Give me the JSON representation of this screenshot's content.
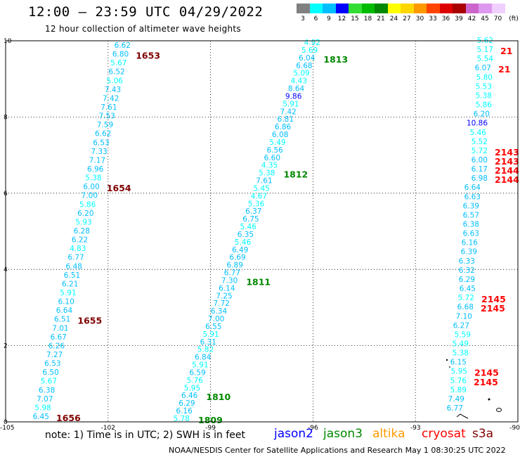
{
  "title": "12:00 — 23:59 UTC 04/29/2022",
  "subtitle": "12 hour collection of altimeter wave heights",
  "colorbar": {
    "unit": "(ft)",
    "stops": [
      {
        "label": "3",
        "color": "#808080"
      },
      {
        "label": "6",
        "color": "#00ffff"
      },
      {
        "label": "9",
        "color": "#00bfff"
      },
      {
        "label": "12",
        "color": "#0000ff"
      },
      {
        "label": "15",
        "color": "#33dd33"
      },
      {
        "label": "18",
        "color": "#00bb00"
      },
      {
        "label": "21",
        "color": "#008800"
      },
      {
        "label": "24",
        "color": "#ffff00"
      },
      {
        "label": "27",
        "color": "#ffd700"
      },
      {
        "label": "30",
        "color": "#ff9900"
      },
      {
        "label": "33",
        "color": "#ff4400"
      },
      {
        "label": "36",
        "color": "#dd0000"
      },
      {
        "label": "39",
        "color": "#aa0000"
      },
      {
        "label": "42",
        "color": "#cc66cc"
      },
      {
        "label": "45",
        "color": "#dd99ee"
      },
      {
        "label": "70",
        "color": "#f0d0ff"
      }
    ]
  },
  "map": {
    "lon_range": [
      -105,
      -90
    ],
    "lat_range": [
      0,
      10
    ],
    "lon_ticks": [
      "-105",
      "-102",
      "-99",
      "-96",
      "-93",
      "-90"
    ],
    "lat_ticks": [
      "0",
      "2",
      "4",
      "6",
      "8",
      "10"
    ],
    "grid": "dotted"
  },
  "tracks": [
    {
      "id": "t1",
      "values": [
        "6.62",
        "6.80",
        "5.67",
        "6.52",
        "5.06",
        "7.43",
        "7.42",
        "7.61",
        "7.53",
        "7.59",
        "6.62",
        "6.53",
        "7.33",
        "7.17",
        "6.96",
        "5.38",
        "6.00",
        "7.00",
        "5.86",
        "6.20",
        "5.93",
        "6.28",
        "6.22",
        "4.83",
        "6.77",
        "6.48",
        "6.51",
        "6.21",
        "5.91",
        "6.10",
        "6.64",
        "6.51",
        "7.01",
        "6.67",
        "6.26",
        "7.27",
        "6.53",
        "6.50",
        "5.67",
        "6.38",
        "7.07",
        "5.98",
        "6.45"
      ],
      "time_labels": [
        {
          "text": "1653",
          "index": 1
        },
        {
          "text": "1654",
          "index": 16
        },
        {
          "text": "1655",
          "index": 31
        },
        {
          "text": "1656",
          "index": 42
        }
      ]
    },
    {
      "id": "t2",
      "values": [
        "4.92",
        "5.69",
        "6.04",
        "6.68",
        "5.09",
        "4.43",
        "8.64",
        "9.86",
        "5.91",
        "7.42",
        "6.81",
        "6.86",
        "6.08",
        "5.49",
        "6.56",
        "6.60",
        "4.35",
        "5.38",
        "7.61",
        "5.45",
        "4.67",
        "5.36",
        "6.37",
        "6.75",
        "5.46",
        "6.35",
        "5.46",
        "6.49",
        "6.69",
        "6.89",
        "6.77",
        "7.30",
        "6.14",
        "7.25",
        "7.72",
        "6.34",
        "7.00",
        "6.55",
        "5.91",
        "6.31",
        "5.82",
        "6.84",
        "5.91",
        "6.59",
        "5.76",
        "5.95",
        "6.46",
        "6.29",
        "6.16",
        "5.78"
      ],
      "time_labels": [
        {
          "text": "1813",
          "index": 2
        },
        {
          "text": "1812",
          "index": 17
        },
        {
          "text": "1811",
          "index": 31
        },
        {
          "text": "1810",
          "index": 46
        },
        {
          "text": "1809",
          "index": 49
        }
      ]
    },
    {
      "id": "t3",
      "values": [
        "5.62",
        "5.17",
        "5.54",
        "6.07",
        "5.80",
        "5.53",
        "5.38",
        "5.86",
        "6.20",
        "10.86",
        "5.46",
        "5.52",
        "5.72",
        "6.00",
        "6.17",
        "6.98",
        "6.64",
        "6.63",
        "6.39",
        "6.57",
        "6.38",
        "6.63",
        "6.16",
        "6.39",
        "6.33",
        "6.32",
        "6.29",
        "6.45",
        "5.72",
        "6.68",
        "7.10",
        "6.27",
        "5.59",
        "5.49",
        "5.38",
        "6.15",
        "5.95",
        "5.76",
        "5.89",
        "7.49",
        "6.77"
      ],
      "time_labels": [
        {
          "text": "21",
          "index": 1
        },
        {
          "text": "21",
          "index": 3
        },
        {
          "text": "2143",
          "index": 12
        },
        {
          "text": "2143",
          "index": 13
        },
        {
          "text": "2144",
          "index": 14
        },
        {
          "text": "2144",
          "index": 15
        },
        {
          "text": "2145",
          "index": 28
        },
        {
          "text": "2145",
          "index": 29
        },
        {
          "text": "2145",
          "index": 36
        },
        {
          "text": "2145",
          "index": 37
        }
      ]
    }
  ],
  "note": "note: 1) Time is in UTC; 2) SWH is in feet",
  "satellites": [
    {
      "name": "jason2",
      "color": "#0000ff"
    },
    {
      "name": "jason3",
      "color": "#008800"
    },
    {
      "name": "altika",
      "color": "#ff9900"
    },
    {
      "name": "cryosat",
      "color": "#ff0000"
    },
    {
      "name": "s3a",
      "color": "#800000"
    }
  ],
  "credit": "NOAA/NESDIS Center for Satellite Applications and Research    May  1 08:30:25 UTC 2022"
}
